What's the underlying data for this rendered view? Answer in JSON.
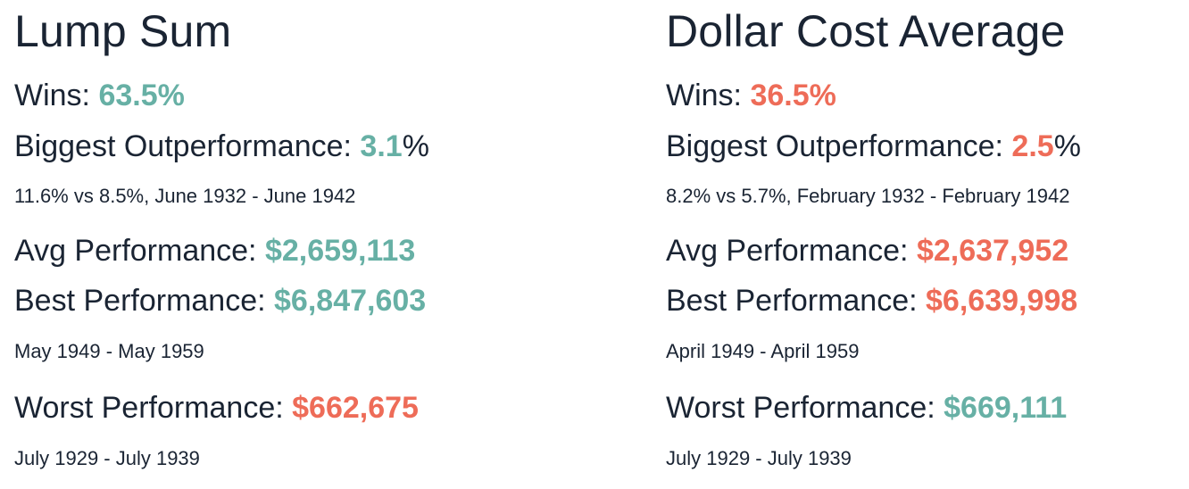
{
  "colors": {
    "text": "#1a2433",
    "positive": "#67b0a5",
    "negative": "#ee6c58"
  },
  "lump_sum": {
    "title": "Lump Sum",
    "wins_label": "Wins: ",
    "wins_value": "63.5%",
    "outperf_label": "Biggest Outperformance: ",
    "outperf_value": "3.1",
    "outperf_suffix": "%",
    "outperf_note": "11.6% vs 8.5%, June 1932 - June 1942",
    "avg_label": "Avg Performance: ",
    "avg_value": "$2,659,113",
    "best_label": "Best Performance: ",
    "best_value": "$6,847,603",
    "best_note": "May 1949 - May 1959",
    "worst_label": "Worst Performance: ",
    "worst_value": "$662,675",
    "worst_note": "July 1929 - July 1939"
  },
  "dca": {
    "title": "Dollar Cost Average",
    "wins_label": "Wins: ",
    "wins_value": "36.5%",
    "outperf_label": "Biggest Outperformance: ",
    "outperf_value": "2.5",
    "outperf_suffix": "%",
    "outperf_note": "8.2% vs 5.7%, February 1932 - February 1942",
    "avg_label": "Avg Performance: ",
    "avg_value": "$2,637,952",
    "best_label": "Best Performance: ",
    "best_value": "$6,639,998",
    "best_note": "April 1949 - April 1959",
    "worst_label": "Worst Performance: ",
    "worst_value": "$669,111",
    "worst_note": "July 1929 - July 1939"
  }
}
